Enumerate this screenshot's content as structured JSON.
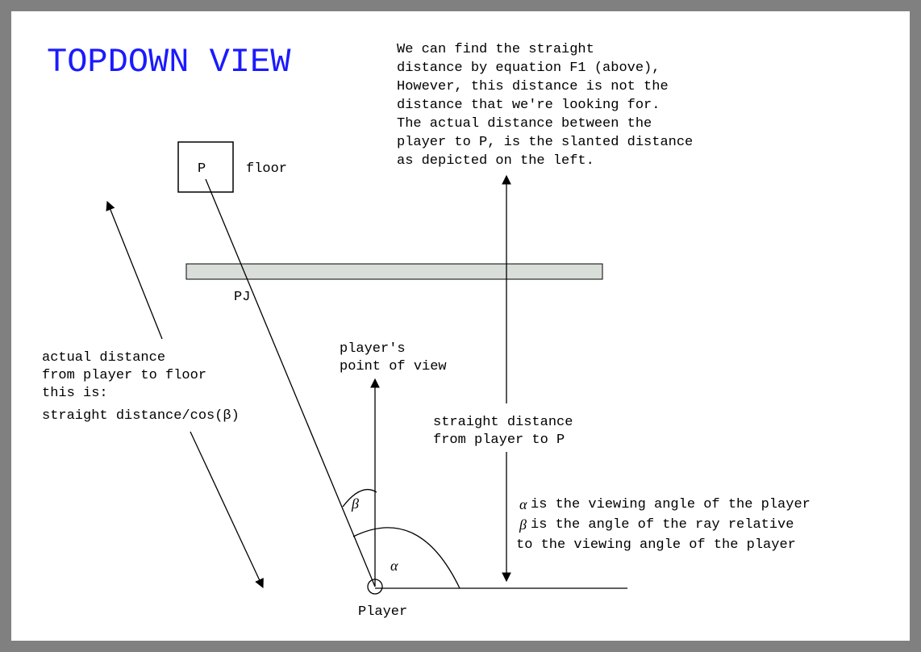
{
  "title": "TOPDOWN VIEW",
  "explanation": [
    "We can find the straight",
    "distance by equation F1 (above),",
    "However, this distance is not the",
    "distance that we're looking for.",
    "The actual distance between the",
    "player to P, is the slanted distance",
    "as depicted on the left."
  ],
  "point_p_label": "P",
  "floor_label": "floor",
  "pj_label": "PJ",
  "actual_distance_lines": [
    "actual distance",
    "from player to floor",
    "this is:",
    "straight distance/cos(β)"
  ],
  "pov_lines": [
    "player's",
    "point of view"
  ],
  "straight_distance_lines": [
    "straight distance",
    "from player to P"
  ],
  "alpha_symbol": "α",
  "beta_symbol": "β",
  "alpha_desc": "is the viewing angle of the player",
  "beta_desc_lines": [
    "is the angle of the ray relative",
    "to the viewing angle of the player"
  ],
  "player_label": "Player",
  "colors": {
    "frame": "#808080",
    "title": "#1a1aff",
    "plane_fill": "#d9ded9",
    "ink": "#000000"
  }
}
